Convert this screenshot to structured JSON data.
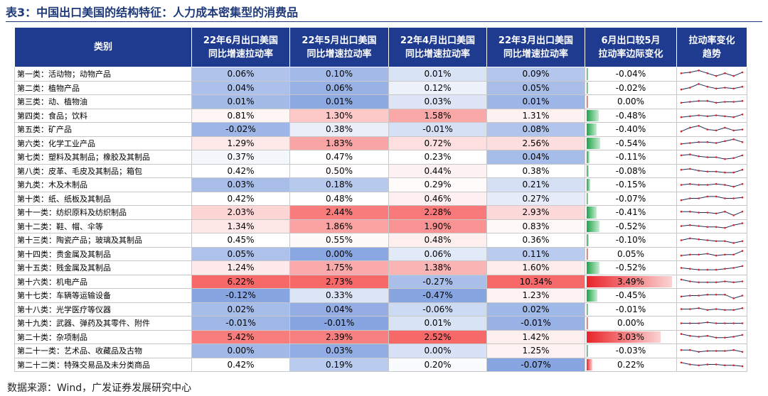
{
  "title": "表3：中国出口美国的结构特征：人力成本密集型的消费品",
  "table": {
    "headers": [
      [
        "类别"
      ],
      [
        "22年6月出口美国",
        "同比增速拉动率"
      ],
      [
        "22年5月出口美国",
        "同比增速拉动率"
      ],
      [
        "22年4月出口美国",
        "同比增速拉动率"
      ],
      [
        "22年3月出口美国",
        "同比增速拉动率"
      ],
      [
        "6月出口较5月",
        "拉动率边际变化"
      ],
      [
        "拉动率变化",
        "趋势"
      ]
    ],
    "rows": [
      [
        "第一类：活动物；动物产品",
        "0.06%",
        "0.10%",
        "0.01%",
        "0.09%",
        "-0.04%"
      ],
      [
        "第二类：植物产品",
        "0.04%",
        "0.06%",
        "0.12%",
        "0.05%",
        "-0.02%"
      ],
      [
        "第三类：动、植物油",
        "0.01%",
        "0.01%",
        "0.03%",
        "0.01%",
        "0.00%"
      ],
      [
        "第四类：食品；饮料",
        "0.81%",
        "1.30%",
        "1.58%",
        "1.31%",
        "-0.48%"
      ],
      [
        "第五类：矿产品",
        "-0.02%",
        "0.38%",
        "-0.01%",
        "0.08%",
        "-0.40%"
      ],
      [
        "第六类：化学工业产品",
        "1.29%",
        "1.83%",
        "0.72%",
        "2.56%",
        "-0.54%"
      ],
      [
        "第七类：塑料及其制品；橡胶及其制品",
        "0.37%",
        "0.47%",
        "0.23%",
        "0.04%",
        "-0.11%"
      ],
      [
        "第八类：皮革、毛皮及其制品；箱包",
        "0.42%",
        "0.50%",
        "0.44%",
        "0.38%",
        "-0.08%"
      ],
      [
        "第九类：木及木制品",
        "0.03%",
        "0.18%",
        "0.29%",
        "0.21%",
        "-0.15%"
      ],
      [
        "第十类：纸、纸板及其制品",
        "0.42%",
        "0.48%",
        "0.46%",
        "0.27%",
        "-0.07%"
      ],
      [
        "第十一类：纺织原料及纺织制品",
        "2.03%",
        "2.44%",
        "2.28%",
        "2.93%",
        "-0.41%"
      ],
      [
        "第十二类：鞋、帽、伞等",
        "1.34%",
        "1.86%",
        "1.90%",
        "0.83%",
        "-0.52%"
      ],
      [
        "第十三类：陶瓷产品；玻璃及其制品",
        "0.45%",
        "0.55%",
        "0.48%",
        "0.36%",
        "-0.10%"
      ],
      [
        "第十四类：贵金属及其制品",
        "0.05%",
        "0.00%",
        "0.06%",
        "0.11%",
        "0.05%"
      ],
      [
        "第十五类：贱金属及其制品",
        "1.24%",
        "1.75%",
        "1.38%",
        "1.60%",
        "-0.52%"
      ],
      [
        "第十六类：机电产品",
        "6.22%",
        "2.73%",
        "-0.27%",
        "10.34%",
        "3.49%"
      ],
      [
        "第十七类：车辆等运输设备",
        "-0.12%",
        "0.33%",
        "-0.47%",
        "1.23%",
        "-0.45%"
      ],
      [
        "第十八类：光学医疗等仪器",
        "0.02%",
        "0.04%",
        "-0.06%",
        "0.02%",
        "-0.01%"
      ],
      [
        "第十九类：武器、弹药及其零件、附件",
        "-0.01%",
        "-0.01%",
        "0.01%",
        "-0.01%",
        "0.00%"
      ],
      [
        "第二十类：杂项制品",
        "5.42%",
        "2.39%",
        "2.52%",
        "1.42%",
        "3.03%"
      ],
      [
        "第二十一类：艺术品、收藏品及古物",
        "0.00%",
        "0.03%",
        "0.00%",
        "1.25%",
        "-0.03%"
      ],
      [
        "第二十二类：特殊交易品及未分类商品",
        "0.42%",
        "0.19%",
        "0.20%",
        "-0.07%",
        "0.22%"
      ]
    ],
    "trends": [
      [
        0.6,
        0.7,
        0.9,
        0.6,
        0.3,
        0.6,
        0.3,
        0.7
      ],
      [
        0.3,
        0.5,
        0.9,
        0.6,
        0.4,
        0.5,
        0.4,
        0.6
      ],
      [
        0.4,
        0.5,
        0.6,
        0.6,
        0.4,
        0.5,
        0.5,
        0.6
      ],
      [
        0.3,
        0.4,
        0.5,
        0.4,
        0.5,
        0.4,
        0.3,
        0.6
      ],
      [
        0.3,
        0.7,
        0.9,
        0.5,
        0.4,
        0.7,
        0.4,
        0.5
      ],
      [
        0.4,
        0.5,
        0.6,
        0.6,
        0.5,
        0.7,
        0.9,
        0.6
      ],
      [
        0.7,
        0.8,
        0.6,
        0.5,
        0.5,
        0.3,
        0.4,
        0.7
      ],
      [
        0.6,
        0.7,
        0.5,
        0.4,
        0.4,
        0.3,
        0.3,
        0.6
      ],
      [
        0.5,
        0.6,
        0.5,
        0.5,
        0.6,
        0.5,
        0.3,
        0.6
      ],
      [
        0.3,
        0.5,
        0.5,
        0.7,
        0.7,
        0.5,
        0.5,
        0.6
      ],
      [
        0.6,
        0.6,
        0.5,
        0.5,
        0.4,
        0.6,
        0.2,
        0.6
      ],
      [
        0.5,
        0.6,
        0.5,
        0.4,
        0.4,
        0.3,
        0.6,
        0.8
      ],
      [
        0.5,
        0.7,
        0.6,
        0.5,
        0.4,
        0.4,
        0.2,
        0.4
      ],
      [
        0.3,
        0.4,
        0.4,
        0.5,
        0.3,
        0.4,
        0.4,
        0.8
      ],
      [
        0.5,
        0.4,
        0.3,
        0.3,
        0.3,
        0.4,
        0.5,
        0.7
      ],
      [
        0.7,
        0.5,
        0.4,
        0.4,
        0.4,
        0.5,
        0.4,
        0.5
      ],
      [
        0.4,
        0.5,
        0.5,
        0.6,
        0.6,
        0.6,
        0.2,
        0.5
      ],
      [
        0.5,
        0.5,
        0.6,
        0.4,
        0.5,
        0.4,
        0.4,
        0.6
      ],
      [
        0.5,
        0.5,
        0.5,
        0.6,
        0.5,
        0.5,
        0.5,
        0.5
      ],
      [
        0.8,
        0.6,
        0.5,
        0.6,
        0.4,
        0.4,
        0.5,
        0.7
      ],
      [
        0.6,
        0.6,
        0.4,
        0.5,
        0.5,
        0.5,
        0.6,
        0.4
      ],
      [
        0.7,
        0.5,
        0.4,
        0.5,
        0.5,
        0.4,
        0.4,
        0.3
      ]
    ]
  },
  "source": "数据来源：Wind，广发证券发展研究中心"
}
